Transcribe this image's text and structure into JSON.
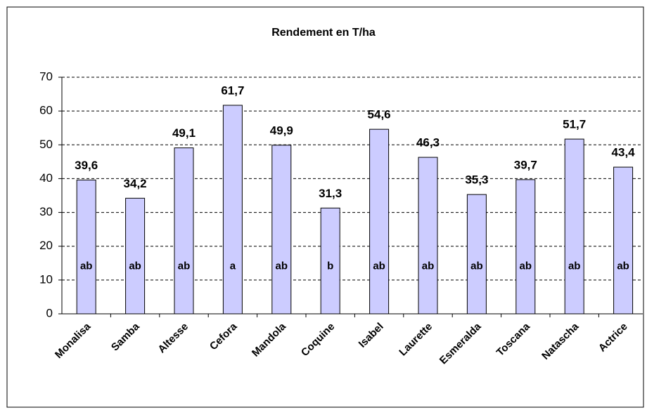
{
  "chart_data": {
    "type": "bar",
    "title": "Rendement en T/ha",
    "categories": [
      "Monalisa",
      "Samba",
      "Altesse",
      "Cefora",
      "Mandola",
      "Coquine",
      "Isabel",
      "Laurette",
      "Esmeralda",
      "Toscana",
      "Natascha",
      "Actrice"
    ],
    "values": [
      39.6,
      34.2,
      49.1,
      61.7,
      49.9,
      31.3,
      54.6,
      46.3,
      35.3,
      39.7,
      51.7,
      43.4
    ],
    "value_labels": [
      "39,6",
      "34,2",
      "49,1",
      "61,7",
      "49,9",
      "31,3",
      "54,6",
      "46,3",
      "35,3",
      "39,7",
      "51,7",
      "43,4"
    ],
    "annotations": [
      "ab",
      "ab",
      "ab",
      "a",
      "ab",
      "b",
      "ab",
      "ab",
      "ab",
      "ab",
      "ab",
      "ab"
    ],
    "color": "#ccccff",
    "ylim": [
      0,
      70
    ],
    "yticks": [
      0,
      10,
      20,
      30,
      40,
      50,
      60,
      70
    ],
    "grid": true
  }
}
